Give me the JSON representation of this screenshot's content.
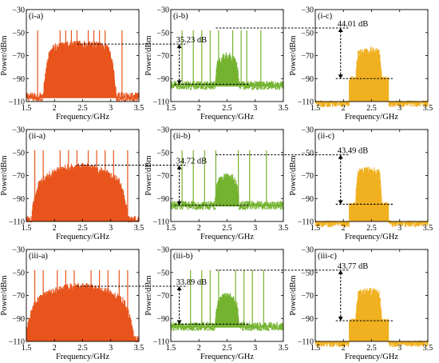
{
  "figure": {
    "x_axis_title": "Frequency/GHz",
    "y_axis_title": "Power/dBm"
  },
  "colors": {
    "column_a": "#e8541c",
    "column_b": "#74b32f",
    "column_c": "#f0b020",
    "axis": "#000000",
    "annotation": "#000000"
  },
  "chart_data": [
    {
      "type": "line",
      "label": "(i-a)",
      "row": 0,
      "col": 0,
      "color_key": "column_a",
      "xlabel": "Frequency/GHz",
      "ylabel": "Power/dBm",
      "xlim": [
        1.5,
        3.5
      ],
      "ylim": [
        -110,
        -30
      ],
      "xticks": [
        1.5,
        2,
        2.5,
        3,
        3.5
      ],
      "yticks": [
        -30,
        -50,
        -70,
        -90,
        -110
      ],
      "band": {
        "center": 2.45,
        "halfwidth": 0.6,
        "peak": -60,
        "floor": -105,
        "shape": "rect"
      },
      "tones": [
        {
          "x": 1.7,
          "y": -48
        },
        {
          "x": 2.1,
          "y": -48
        },
        {
          "x": 2.2,
          "y": -48
        },
        {
          "x": 2.3,
          "y": -48
        },
        {
          "x": 2.4,
          "y": -48
        },
        {
          "x": 2.6,
          "y": -48
        },
        {
          "x": 2.7,
          "y": -48
        },
        {
          "x": 2.8,
          "y": -48
        },
        {
          "x": 2.9,
          "y": -48
        },
        {
          "x": 3.2,
          "y": -48
        }
      ],
      "annotation": null
    },
    {
      "type": "line",
      "label": "(i-b)",
      "row": 0,
      "col": 1,
      "color_key": "column_b",
      "xlabel": "Frequency/GHz",
      "ylabel": "Power/dBm",
      "xlim": [
        1.5,
        3.5
      ],
      "ylim": [
        -110,
        -30
      ],
      "xticks": [
        1.5,
        2,
        2.5,
        3,
        3.5
      ],
      "yticks": [
        -30,
        -50,
        -70,
        -90,
        -110
      ],
      "band": {
        "center": 2.5,
        "halfwidth": 0.17,
        "peak": -70,
        "floor": -95,
        "shape": "bump"
      },
      "tones": [
        {
          "x": 1.7,
          "y": -48
        },
        {
          "x": 1.9,
          "y": -48
        },
        {
          "x": 2.05,
          "y": -48
        },
        {
          "x": 2.2,
          "y": -48
        },
        {
          "x": 2.35,
          "y": -48
        },
        {
          "x": 2.6,
          "y": -48
        },
        {
          "x": 2.75,
          "y": -48
        },
        {
          "x": 2.85,
          "y": -48
        },
        {
          "x": 3.1,
          "y": -48
        }
      ],
      "annotation": {
        "text": "35.23 dB",
        "top": -60,
        "bottom": -95,
        "arrow_x": 1.65,
        "from_prev": true
      }
    },
    {
      "type": "line",
      "label": "(i-c)",
      "row": 0,
      "col": 2,
      "color_key": "column_c",
      "xlabel": "Frequency/GHz",
      "ylabel": "Power/dBm",
      "xlim": [
        1.5,
        3.5
      ],
      "ylim": [
        -110,
        -30
      ],
      "xticks": [
        1.5,
        2,
        2.5,
        3,
        3.5
      ],
      "yticks": [
        -30,
        -50,
        -70,
        -90,
        -110
      ],
      "band": {
        "center": 2.45,
        "halfwidth": 0.2,
        "peak": -65,
        "floor": -110,
        "shape": "flat",
        "pedestal": -90,
        "pedestal_halfwidth": 0.35
      },
      "tones": [],
      "annotation": {
        "text": "44.01 dB",
        "top": -46,
        "bottom": -90,
        "arrow_x": 1.95,
        "from_prev": true
      }
    },
    {
      "type": "line",
      "label": "(ii-a)",
      "row": 1,
      "col": 0,
      "color_key": "column_a",
      "xlabel": "Frequency/GHz",
      "ylabel": "Power/dBm",
      "xlim": [
        1.5,
        3.5
      ],
      "ylim": [
        -110,
        -30
      ],
      "xticks": [
        1.5,
        2,
        2.5,
        3,
        3.5
      ],
      "yticks": [
        -30,
        -50,
        -70,
        -90,
        -110
      ],
      "band": {
        "center": 2.45,
        "halfwidth": 0.85,
        "peak": -62,
        "floor": -108,
        "shape": "dome"
      },
      "tones": [
        {
          "x": 1.65,
          "y": -48
        },
        {
          "x": 1.8,
          "y": -48
        },
        {
          "x": 2.1,
          "y": -48
        },
        {
          "x": 2.25,
          "y": -48
        },
        {
          "x": 2.4,
          "y": -48
        },
        {
          "x": 2.6,
          "y": -48
        },
        {
          "x": 2.75,
          "y": -48
        },
        {
          "x": 2.9,
          "y": -48
        },
        {
          "x": 3.05,
          "y": -48
        },
        {
          "x": 3.3,
          "y": -48
        }
      ],
      "annotation": null
    },
    {
      "type": "line",
      "label": "(ii-b)",
      "row": 1,
      "col": 1,
      "color_key": "column_b",
      "xlabel": "Frequency/GHz",
      "ylabel": "Power/dBm",
      "xlim": [
        1.5,
        3.5
      ],
      "ylim": [
        -110,
        -30
      ],
      "xticks": [
        1.5,
        2,
        2.5,
        3,
        3.5
      ],
      "yticks": [
        -30,
        -50,
        -70,
        -90,
        -110
      ],
      "band": {
        "center": 2.5,
        "halfwidth": 0.17,
        "peak": -70,
        "floor": -95,
        "shape": "bump"
      },
      "tones": [
        {
          "x": 1.7,
          "y": -48
        },
        {
          "x": 1.9,
          "y": -48
        },
        {
          "x": 2.1,
          "y": -48
        },
        {
          "x": 2.3,
          "y": -48
        },
        {
          "x": 2.7,
          "y": -48
        },
        {
          "x": 2.9,
          "y": -48
        },
        {
          "x": 3.2,
          "y": -48
        }
      ],
      "annotation": {
        "text": "34.72 dB",
        "top": -61,
        "bottom": -96,
        "arrow_x": 1.65,
        "from_prev": true
      }
    },
    {
      "type": "line",
      "label": "(ii-c)",
      "row": 1,
      "col": 2,
      "color_key": "column_c",
      "xlabel": "Frequency/GHz",
      "ylabel": "Power/dBm",
      "xlim": [
        1.5,
        3.5
      ],
      "ylim": [
        -110,
        -30
      ],
      "xticks": [
        1.5,
        2,
        2.5,
        3,
        3.5
      ],
      "yticks": [
        -30,
        -50,
        -70,
        -90,
        -110
      ],
      "band": {
        "center": 2.45,
        "halfwidth": 0.2,
        "peak": -65,
        "floor": -110,
        "shape": "flat",
        "pedestal": -95,
        "pedestal_halfwidth": 0.35
      },
      "tones": [],
      "annotation": {
        "text": "43.49 dB",
        "top": -52,
        "bottom": -95,
        "arrow_x": 1.95,
        "from_prev": true
      }
    },
    {
      "type": "line",
      "label": "(iii-a)",
      "row": 2,
      "col": 0,
      "color_key": "column_a",
      "xlabel": "Frequency/GHz",
      "ylabel": "Power/dBm",
      "xlim": [
        1.5,
        3.5
      ],
      "ylim": [
        -110,
        -30
      ],
      "xticks": [
        1.5,
        2,
        2.5,
        3,
        3.5
      ],
      "yticks": [
        -30,
        -50,
        -70,
        -90,
        -110
      ],
      "band": {
        "center": 2.45,
        "halfwidth": 0.95,
        "peak": -62,
        "floor": -108,
        "shape": "dome"
      },
      "tones": [
        {
          "x": 1.65,
          "y": -48
        },
        {
          "x": 1.8,
          "y": -48
        },
        {
          "x": 2.05,
          "y": -48
        },
        {
          "x": 2.2,
          "y": -48
        },
        {
          "x": 2.35,
          "y": -48
        },
        {
          "x": 2.65,
          "y": -48
        },
        {
          "x": 2.8,
          "y": -48
        },
        {
          "x": 2.95,
          "y": -48
        },
        {
          "x": 3.15,
          "y": -48
        },
        {
          "x": 3.3,
          "y": -48
        }
      ],
      "annotation": null
    },
    {
      "type": "line",
      "label": "(iii-b)",
      "row": 2,
      "col": 1,
      "color_key": "column_b",
      "xlabel": "Frequency/GHz",
      "ylabel": "Power/dBm",
      "xlim": [
        1.5,
        3.5
      ],
      "ylim": [
        -110,
        -30
      ],
      "xticks": [
        1.5,
        2,
        2.5,
        3,
        3.5
      ],
      "yticks": [
        -30,
        -50,
        -70,
        -90,
        -110
      ],
      "band": {
        "center": 2.5,
        "halfwidth": 0.17,
        "peak": -70,
        "floor": -96,
        "shape": "bump"
      },
      "tones": [
        {
          "x": 1.85,
          "y": -48
        },
        {
          "x": 2.05,
          "y": -48
        },
        {
          "x": 2.2,
          "y": -48
        },
        {
          "x": 2.35,
          "y": -48
        },
        {
          "x": 2.65,
          "y": -48
        },
        {
          "x": 2.8,
          "y": -48
        },
        {
          "x": 2.95,
          "y": -48
        },
        {
          "x": 3.15,
          "y": -48
        }
      ],
      "annotation": {
        "text": "33.89 dB",
        "top": -62,
        "bottom": -95,
        "arrow_x": 1.65,
        "from_prev": true
      }
    },
    {
      "type": "line",
      "label": "(iii-c)",
      "row": 2,
      "col": 2,
      "color_key": "column_c",
      "xlabel": "Frequency/GHz",
      "ylabel": "Power/dBm",
      "xlim": [
        1.5,
        3.5
      ],
      "ylim": [
        -110,
        -30
      ],
      "xticks": [
        1.5,
        2,
        2.5,
        3,
        3.5
      ],
      "yticks": [
        -30,
        -50,
        -70,
        -90,
        -110
      ],
      "band": {
        "center": 2.45,
        "halfwidth": 0.2,
        "peak": -66,
        "floor": -110,
        "shape": "flat",
        "pedestal": -92,
        "pedestal_halfwidth": 0.35
      },
      "tones": [],
      "annotation": {
        "text": "43.77 dB",
        "top": -48,
        "bottom": -92,
        "arrow_x": 1.95,
        "from_prev": true
      }
    }
  ]
}
